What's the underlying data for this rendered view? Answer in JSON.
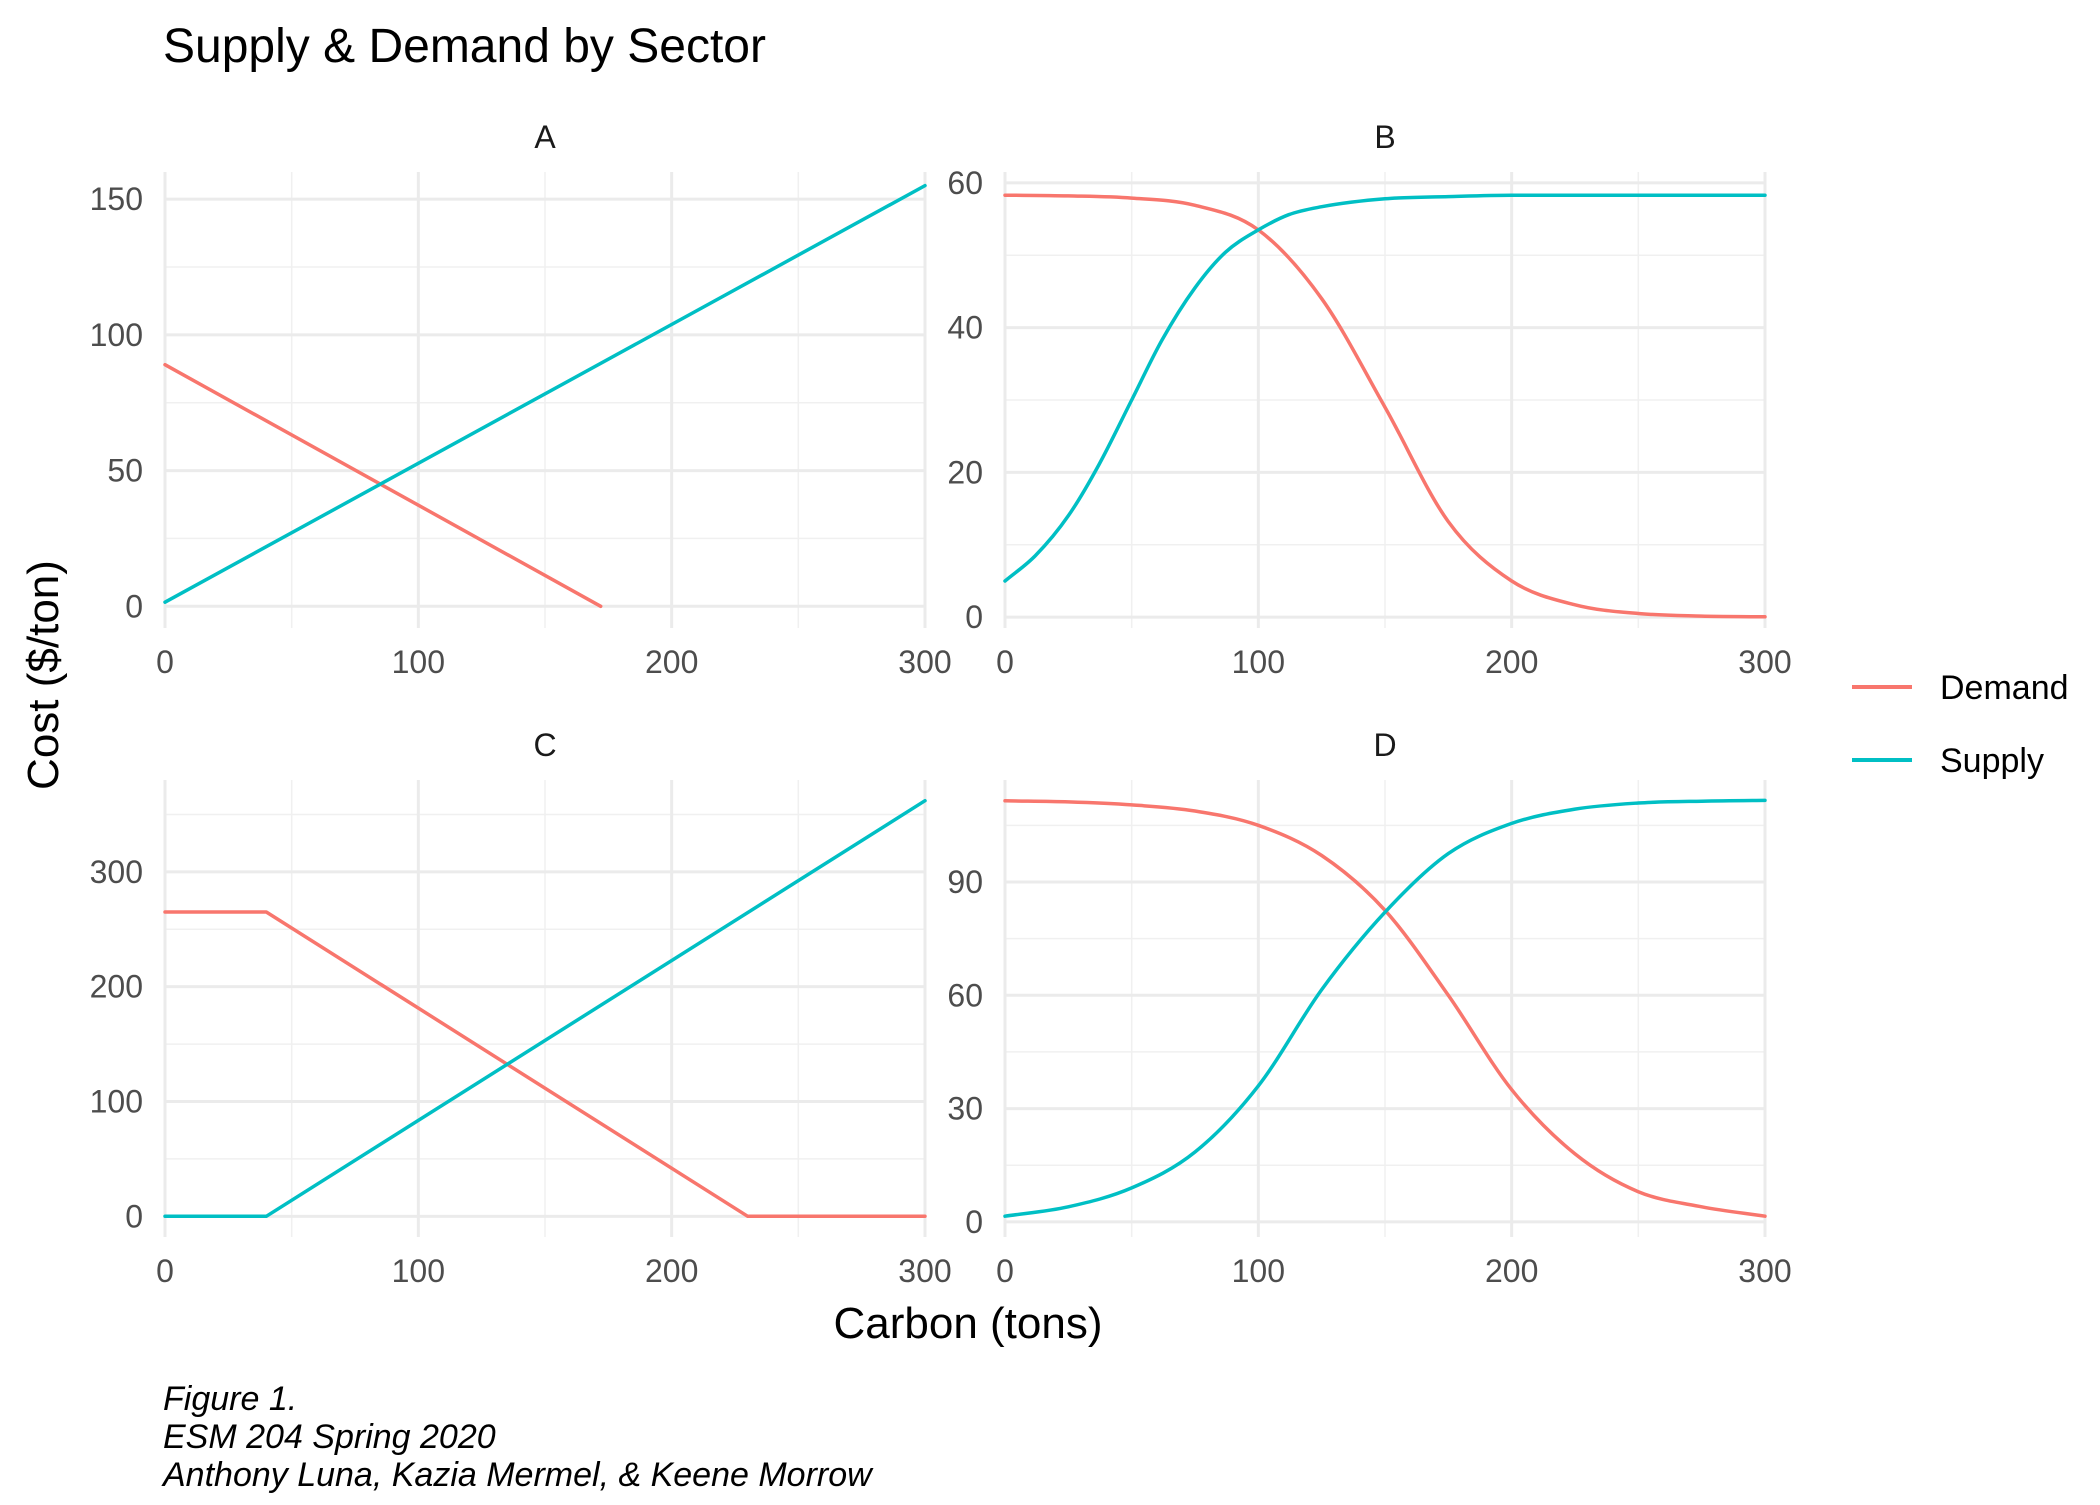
{
  "chart_data": {
    "type": "line",
    "title": "Supply & Demand by Sector",
    "xlabel": "Carbon (tons)",
    "ylabel": "Cost ($/ton)",
    "grid": true,
    "legend": {
      "position": "right",
      "entries": [
        {
          "name": "Demand",
          "color": "#F8766D"
        },
        {
          "name": "Supply",
          "color": "#00BFC4"
        }
      ]
    },
    "caption": [
      "Figure 1.",
      "ESM 204 Spring 2020",
      "Anthony Luna, Kazia Mermel, & Keene Morrow"
    ],
    "panels": [
      {
        "label": "A",
        "xlim": [
          0,
          300
        ],
        "ylim": [
          -8,
          160
        ],
        "xticks": [
          0,
          100,
          200,
          300
        ],
        "yticks": [
          0,
          50,
          100,
          150
        ],
        "series": [
          {
            "name": "Demand",
            "x": [
              0,
              172
            ],
            "y": [
              89,
              0
            ]
          },
          {
            "name": "Supply",
            "x": [
              0,
              300
            ],
            "y": [
              1.5,
              155
            ]
          }
        ]
      },
      {
        "label": "B",
        "xlim": [
          0,
          300
        ],
        "ylim": [
          -1.5,
          61.5
        ],
        "xticks": [
          0,
          100,
          200,
          300
        ],
        "yticks": [
          0,
          20,
          40,
          60
        ],
        "series": [
          {
            "name": "Demand",
            "x": [
              0,
              25,
              50,
              75,
              100,
              125,
              150,
              175,
              200,
              225,
              250,
              275,
              300
            ],
            "y": [
              58.3,
              58.2,
              57.9,
              56.9,
              53.5,
              44,
              29,
              13.2,
              5,
              1.7,
              0.5,
              0.15,
              0.05
            ]
          },
          {
            "name": "Supply",
            "x": [
              0,
              12,
              25,
              37,
              50,
              62,
              75,
              87,
              100,
              112,
              125,
              150,
              175,
              200,
              250,
              300
            ],
            "y": [
              5,
              8.5,
              14,
              21,
              30,
              38.3,
              45.5,
              50.4,
              53.5,
              55.6,
              56.7,
              57.8,
              58.1,
              58.3,
              58.3,
              58.3
            ]
          }
        ]
      },
      {
        "label": "C",
        "xlim": [
          0,
          300
        ],
        "ylim": [
          -18,
          380
        ],
        "xticks": [
          0,
          100,
          200,
          300
        ],
        "yticks": [
          0,
          100,
          200,
          300
        ],
        "series": [
          {
            "name": "Demand",
            "x": [
              0,
              40,
              230,
              300
            ],
            "y": [
              265,
              265,
              0,
              0
            ]
          },
          {
            "name": "Supply",
            "x": [
              0,
              40,
              300
            ],
            "y": [
              0,
              0,
              362
            ]
          }
        ]
      },
      {
        "label": "D",
        "xlim": [
          0,
          300
        ],
        "ylim": [
          -4,
          117
        ],
        "xticks": [
          0,
          100,
          200,
          300
        ],
        "yticks": [
          0,
          30,
          60,
          90
        ],
        "series": [
          {
            "name": "Demand",
            "x": [
              0,
              25,
              50,
              75,
              100,
              125,
              150,
              175,
              200,
              225,
              250,
              275,
              300
            ],
            "y": [
              111.5,
              111.2,
              110.4,
              108.8,
              105,
              97,
              82.5,
              60,
              35,
              18,
              8,
              4,
              1.5
            ]
          },
          {
            "name": "Supply",
            "x": [
              0,
              25,
              50,
              75,
              100,
              125,
              150,
              175,
              200,
              225,
              250,
              275,
              300
            ],
            "y": [
              1.5,
              4,
              9,
              18.5,
              36,
              61.5,
              82,
              97.5,
              105.5,
              109.3,
              110.9,
              111.4,
              111.6
            ]
          }
        ]
      }
    ]
  }
}
